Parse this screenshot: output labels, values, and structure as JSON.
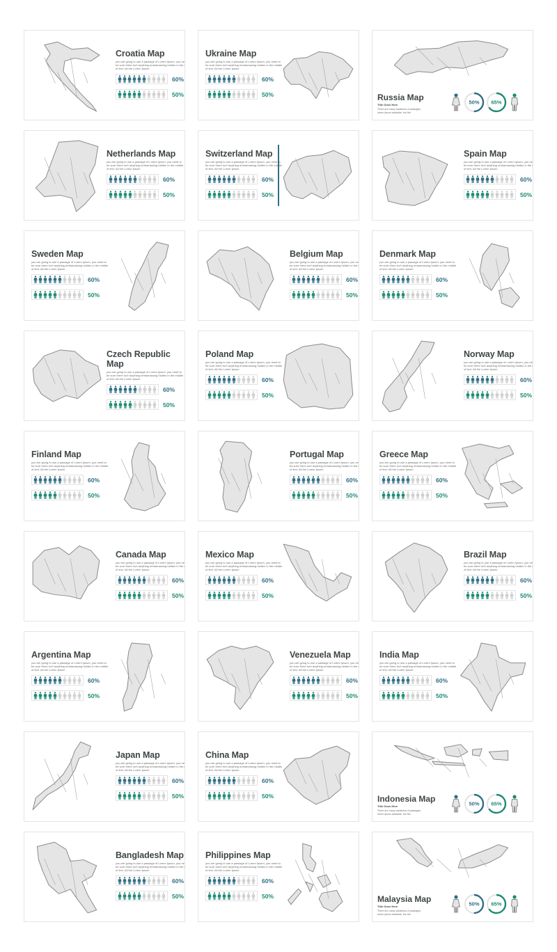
{
  "description_text": "you are going to use a passage of Lorem Ipsum, you need to be sure there isn't anything embarrassing hidden in the middle of text. All the Lorem Ipsum",
  "stat_a": "60%",
  "stat_b": "50%",
  "people_total": 10,
  "people_filled": {
    "stat_a": 6,
    "stat_b": 5
  },
  "colors": {
    "teal_blue": "#2f6e85",
    "teal_green": "#1d8a73",
    "grey_figure": "#cfcfcf",
    "map_fill": "#e5e5e5",
    "map_stroke": "#8a8a8a"
  },
  "cards": [
    {
      "title": "Croatia Map",
      "layout": "map-left",
      "shape": "croatia"
    },
    {
      "title": "Ukraine Map",
      "layout": "map-right",
      "shape": "ukraine"
    },
    {
      "title": "Russia Map",
      "layout": "split",
      "shape": "russia",
      "subtitle": "Title Goes Here",
      "desc": "There are many variations of passages lorem ipsum available, but the",
      "ring_a": "50%",
      "ring_b": "65%"
    },
    {
      "title": "Netherlands Map",
      "layout": "map-left",
      "shape": "netherlands"
    },
    {
      "title": "Switzerland Map",
      "layout": "map-right",
      "shape": "switzerland",
      "vline": true
    },
    {
      "title": "Spain Map",
      "layout": "map-left",
      "shape": "spain"
    },
    {
      "title": "Sweden Map",
      "layout": "map-right",
      "shape": "sweden"
    },
    {
      "title": "Belgium Map",
      "layout": "map-left",
      "shape": "belgium"
    },
    {
      "title": "Denmark Map",
      "layout": "map-right",
      "shape": "denmark"
    },
    {
      "title": "Czech Republic Map",
      "layout": "map-left",
      "shape": "czech"
    },
    {
      "title": "Poland Map",
      "layout": "map-right",
      "shape": "poland"
    },
    {
      "title": "Norway Map",
      "layout": "map-left",
      "shape": "norway"
    },
    {
      "title": "Finland Map",
      "layout": "map-right",
      "shape": "finland"
    },
    {
      "title": "Portugal Map",
      "layout": "map-left",
      "shape": "portugal"
    },
    {
      "title": "Greece Map",
      "layout": "map-right",
      "shape": "greece"
    },
    {
      "title": "Canada Map",
      "layout": "map-left",
      "shape": "canada"
    },
    {
      "title": "Mexico Map",
      "layout": "map-right",
      "shape": "mexico"
    },
    {
      "title": "Brazil Map",
      "layout": "map-left",
      "shape": "brazil"
    },
    {
      "title": "Argentina Map",
      "layout": "map-right",
      "shape": "argentina"
    },
    {
      "title": "Venezuela Map",
      "layout": "map-left",
      "shape": "venezuela"
    },
    {
      "title": "India Map",
      "layout": "map-right",
      "shape": "india"
    },
    {
      "title": "Japan Map",
      "layout": "map-left",
      "shape": "japan"
    },
    {
      "title": "China Map",
      "layout": "map-right",
      "shape": "china"
    },
    {
      "title": "Indonesia Map",
      "layout": "split",
      "shape": "indonesia",
      "subtitle": "Title Goes Here",
      "desc": "There are many variations of passages lorem ipsum available, but the",
      "ring_a": "50%",
      "ring_b": "65%"
    },
    {
      "title": "Bangladesh Map",
      "layout": "map-left",
      "shape": "bangladesh"
    },
    {
      "title": "Philippines Map",
      "layout": "map-right",
      "shape": "philippines"
    },
    {
      "title": "Malaysia Map",
      "layout": "split",
      "shape": "malaysia",
      "subtitle": "Title Goes Here",
      "desc": "There are many variations of passages lorem ipsum available, but the",
      "ring_a": "50%",
      "ring_b": "65%"
    }
  ]
}
